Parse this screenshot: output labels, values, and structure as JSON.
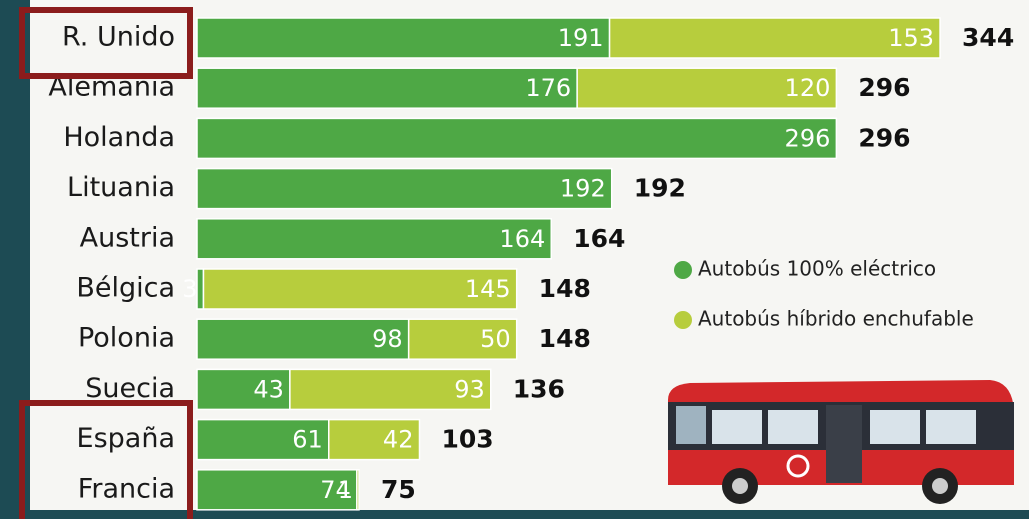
{
  "chart_data": {
    "type": "stacked-bar-horizontal",
    "categories": [
      "R. Unido",
      "Alemania",
      "Holanda",
      "Lituania",
      "Austria",
      "Bélgica",
      "Polonia",
      "Suecia",
      "España",
      "Francia"
    ],
    "series": [
      {
        "name": "Autobús 100% eléctrico",
        "color": "#4ea845",
        "values": [
          191,
          176,
          296,
          192,
          164,
          3,
          98,
          43,
          61,
          74
        ]
      },
      {
        "name": "Autobús híbrido enchufable",
        "color": "#b7cd3d",
        "values": [
          153,
          120,
          null,
          null,
          null,
          145,
          50,
          93,
          42,
          1
        ]
      }
    ],
    "totals": [
      344,
      296,
      296,
      192,
      164,
      148,
      148,
      136,
      103,
      75
    ]
  }
}
